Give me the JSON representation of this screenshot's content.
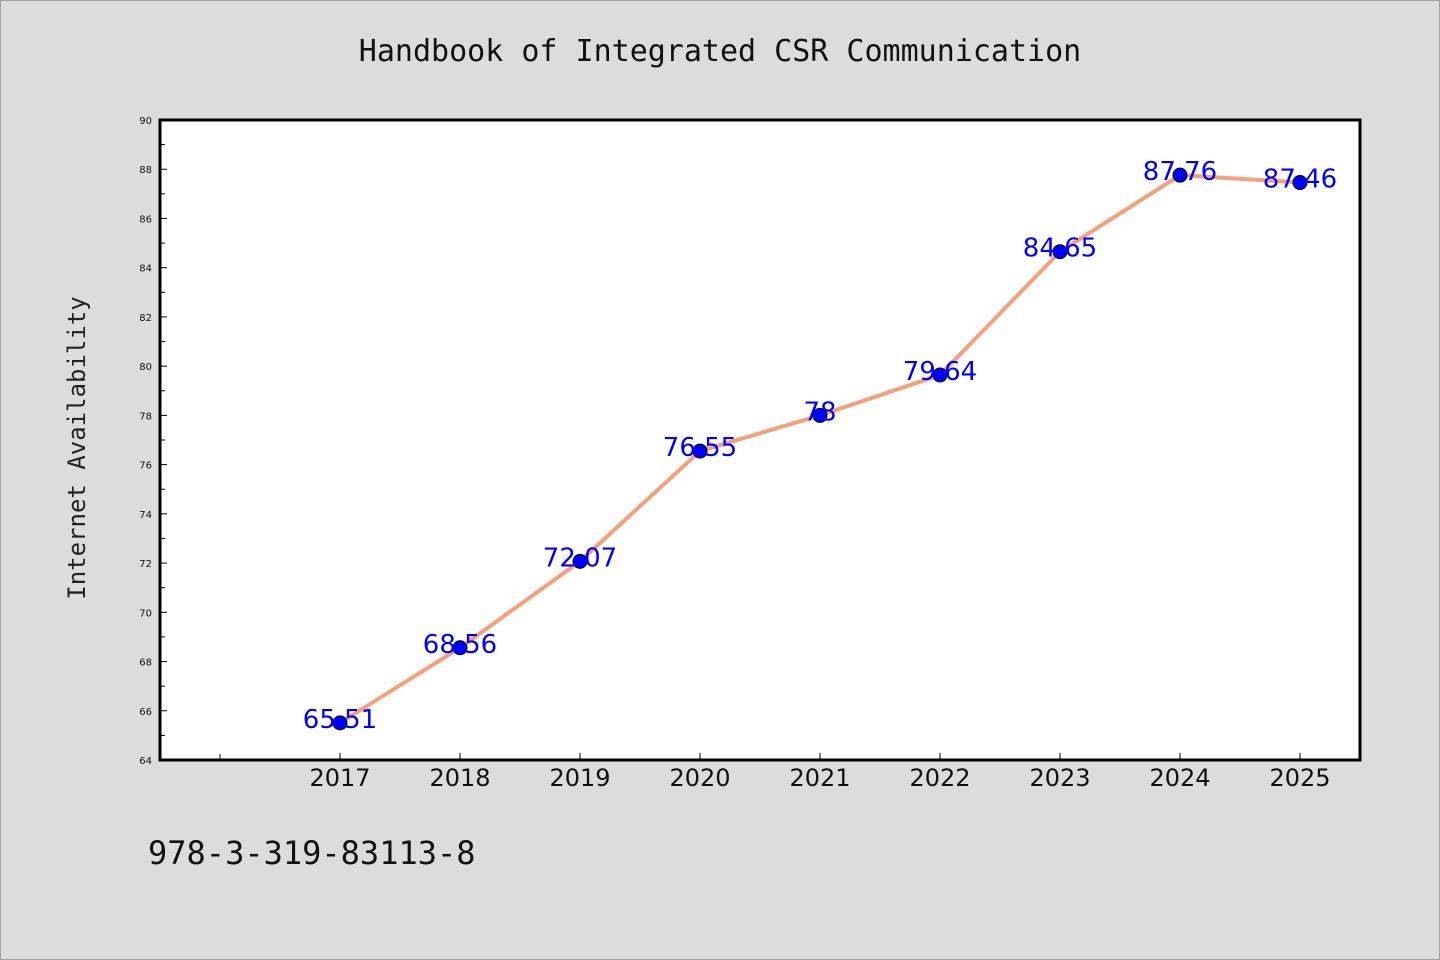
{
  "page": {
    "title": "Handbook of Integrated CSR Communication",
    "isbn": "978-3-319-83113-8"
  },
  "chart_data": {
    "type": "line",
    "title": "",
    "xlabel": "",
    "ylabel": "Internet Availability",
    "categories": [
      "2017",
      "2018",
      "2019",
      "2020",
      "2021",
      "2022",
      "2023",
      "2024",
      "2025"
    ],
    "series": [
      {
        "values": [
          65.51,
          68.56,
          72.07,
          76.55,
          78,
          79.64,
          84.65,
          87.76,
          87.46
        ],
        "labels": [
          "65.51",
          "68.56",
          "72.07",
          "76.55",
          "78",
          "79.64",
          "84.65",
          "87.76",
          "87.46"
        ],
        "line_color": "#f4a07c",
        "marker_color": "#0000ff"
      }
    ],
    "ylim": [
      64,
      90
    ],
    "yticks": [
      "64",
      "66",
      "68",
      "70",
      "72",
      "74",
      "76",
      "78",
      "80",
      "82",
      "84",
      "86",
      "88",
      "90"
    ],
    "grid": false,
    "legend": "none"
  }
}
